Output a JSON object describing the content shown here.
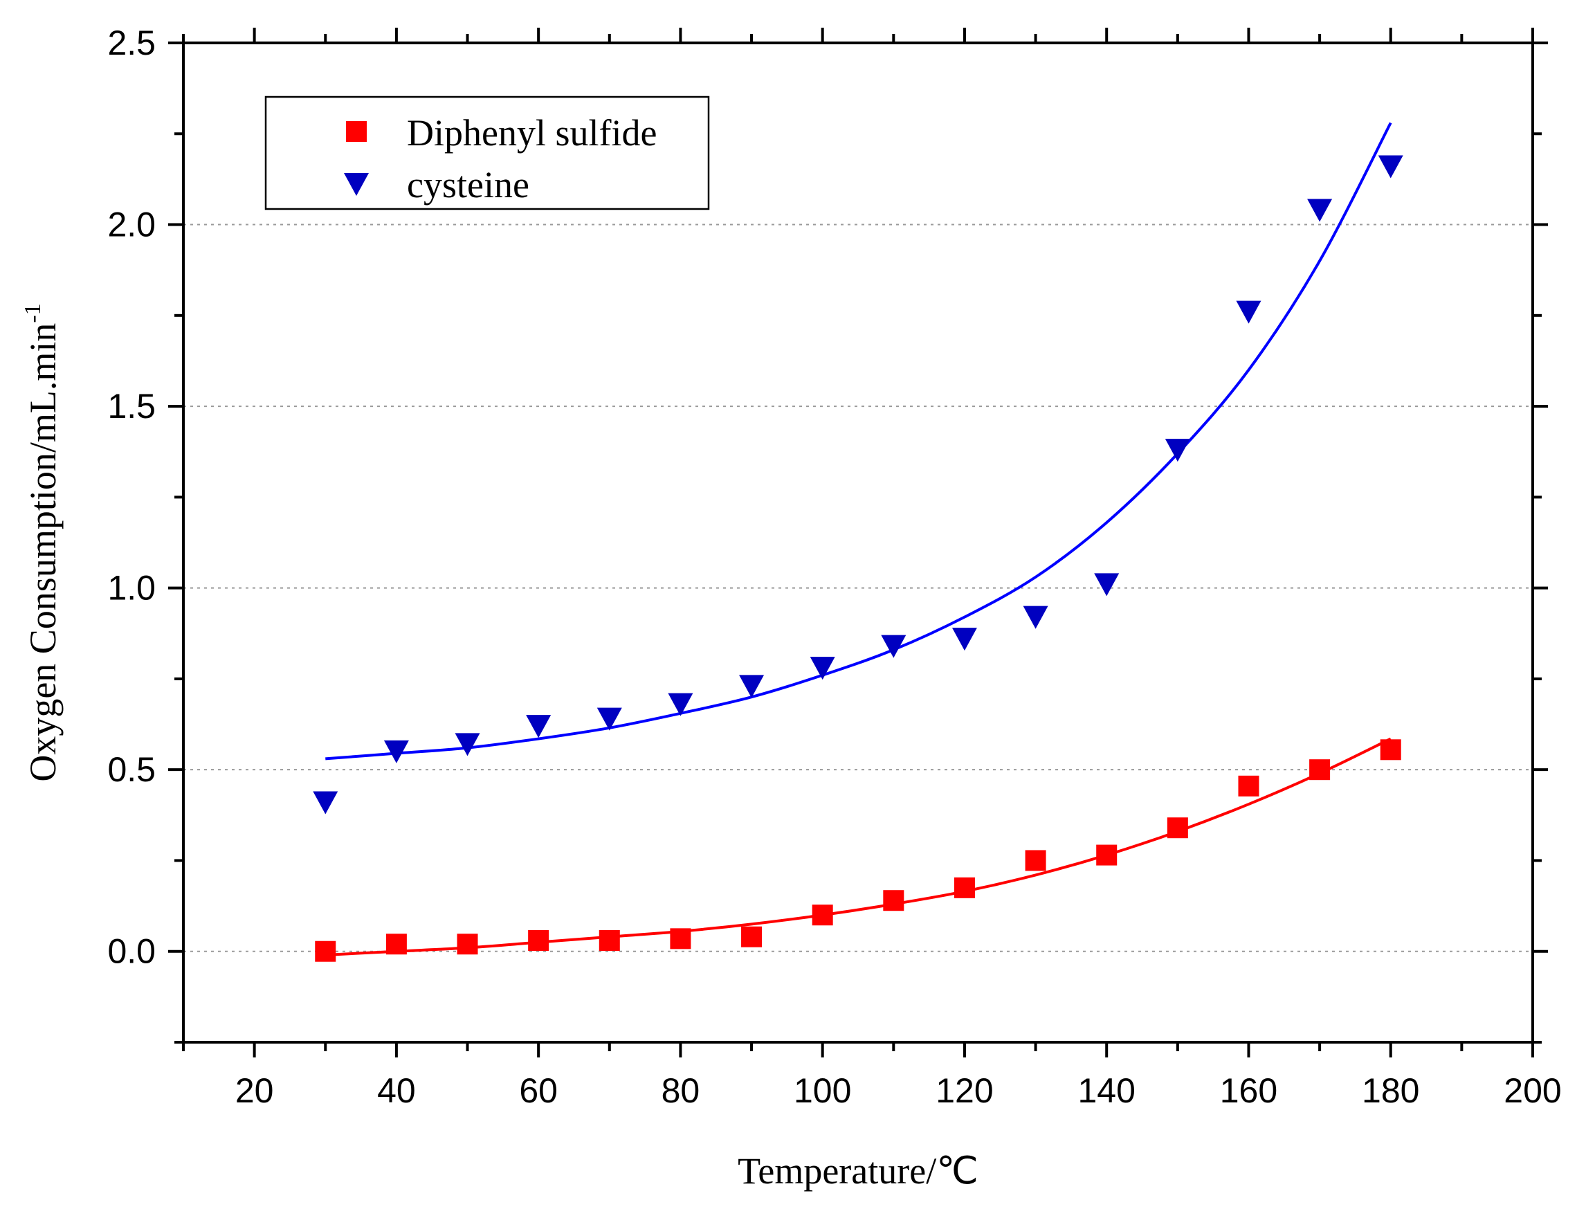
{
  "chart_data": {
    "type": "scatter",
    "title": "",
    "xlabel": "Temperature/℃",
    "ylabel": "Oxygen Consumption/mL.min",
    "ylabel_superscript": "-1",
    "xlim": [
      10,
      200
    ],
    "ylim": [
      -0.25,
      2.5
    ],
    "xticks": [
      20,
      40,
      60,
      80,
      100,
      120,
      140,
      160,
      180,
      200
    ],
    "yticks": [
      0.0,
      0.5,
      1.0,
      1.5,
      2.0,
      2.5
    ],
    "xtick_labels": [
      "20",
      "40",
      "60",
      "80",
      "100",
      "120",
      "140",
      "160",
      "180",
      "200"
    ],
    "ytick_labels": [
      "0.0",
      "0.5",
      "1.0",
      "1.5",
      "2.0",
      "2.5"
    ],
    "grid": "horizontal dotted",
    "legend_position": "top-left",
    "series": [
      {
        "name": "Diphenyl sulfide",
        "marker": "square",
        "color": "#ff0000",
        "x": [
          30,
          40,
          50,
          60,
          70,
          80,
          90,
          100,
          110,
          120,
          130,
          140,
          150,
          160,
          170,
          180
        ],
        "y": [
          0.0,
          0.02,
          0.02,
          0.03,
          0.03,
          0.035,
          0.04,
          0.1,
          0.14,
          0.175,
          0.25,
          0.265,
          0.34,
          0.455,
          0.5,
          0.555
        ],
        "fit": {
          "x": [
            30,
            40,
            50,
            60,
            70,
            80,
            90,
            100,
            110,
            120,
            130,
            140,
            150,
            160,
            170,
            180
          ],
          "y": [
            -0.01,
            0.0,
            0.01,
            0.025,
            0.04,
            0.055,
            0.075,
            0.1,
            0.13,
            0.165,
            0.21,
            0.265,
            0.33,
            0.405,
            0.49,
            0.585
          ]
        }
      },
      {
        "name": "cysteine",
        "marker": "triangle-down",
        "color": "#0000c0",
        "fit_color": "#0000ff",
        "x": [
          30,
          40,
          50,
          60,
          70,
          80,
          90,
          100,
          110,
          120,
          130,
          140,
          150,
          160,
          170,
          180
        ],
        "y": [
          0.41,
          0.55,
          0.57,
          0.62,
          0.64,
          0.68,
          0.73,
          0.78,
          0.84,
          0.86,
          0.92,
          1.01,
          1.38,
          1.76,
          2.04,
          2.16
        ],
        "fit": {
          "x": [
            30,
            40,
            50,
            60,
            70,
            80,
            90,
            100,
            110,
            120,
            130,
            140,
            150,
            160,
            170,
            180
          ],
          "y": [
            0.53,
            0.545,
            0.56,
            0.585,
            0.615,
            0.655,
            0.7,
            0.76,
            0.83,
            0.92,
            1.03,
            1.18,
            1.37,
            1.6,
            1.9,
            2.28
          ]
        }
      }
    ]
  }
}
